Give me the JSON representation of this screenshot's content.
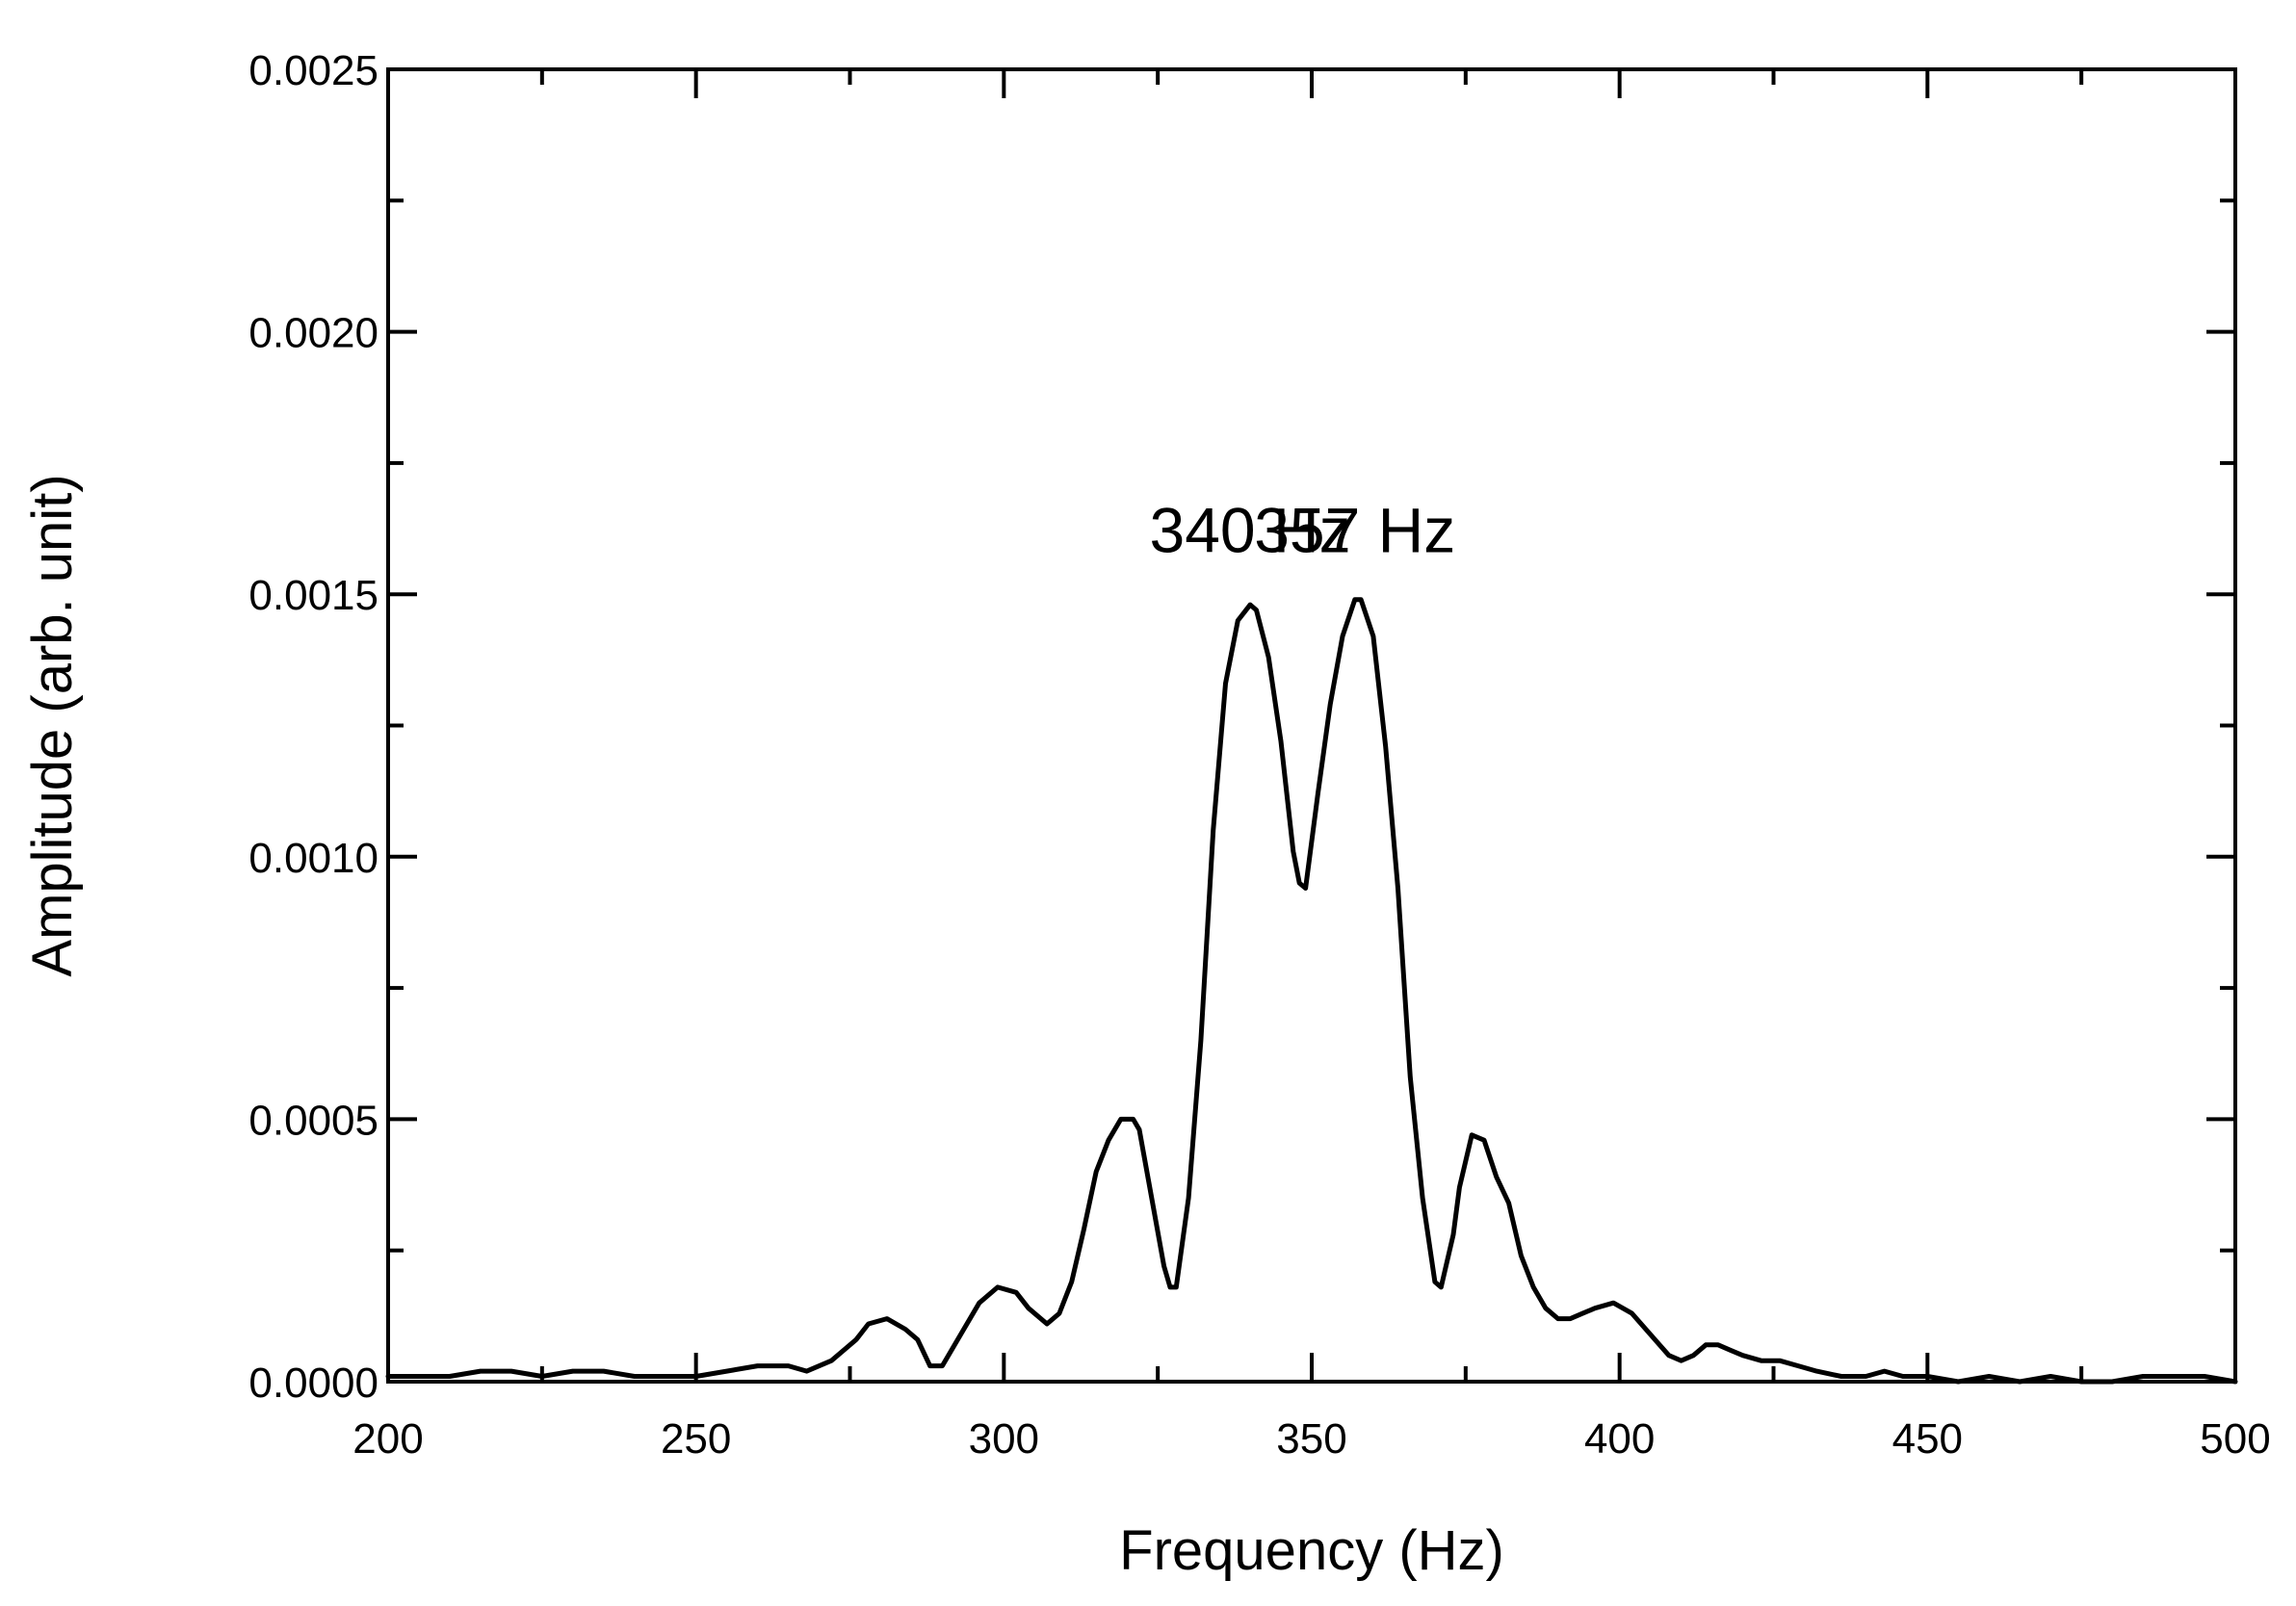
{
  "chart_data": {
    "type": "line",
    "title": "",
    "xlabel": "Frequency (Hz)",
    "ylabel": "Amplitude (arb. unit)",
    "xlim": [
      200,
      500
    ],
    "ylim": [
      0,
      0.0025
    ],
    "xticks": [
      200,
      250,
      300,
      350,
      400,
      450,
      500
    ],
    "xtick_labels": [
      "200",
      "250",
      "300",
      "350",
      "400",
      "450",
      "500"
    ],
    "yticks": [
      0,
      0.0005,
      0.001,
      0.0015,
      0.002,
      0.0025
    ],
    "ytick_labels": [
      "0.0000",
      "0.0005",
      "0.0010",
      "0.0015",
      "0.0020",
      "0.0025"
    ],
    "grid": false,
    "line_color": "#000000",
    "annotations": [
      {
        "text": "340 Hz",
        "x": 340,
        "y": 0.00158
      },
      {
        "text": "357 Hz",
        "x": 357,
        "y": 0.00158
      }
    ],
    "series": [
      {
        "x": [
          200,
          205,
          210,
          215,
          220,
          225,
          230,
          235,
          240,
          245,
          250,
          255,
          260,
          265,
          268,
          272,
          276,
          278,
          281,
          284,
          286,
          288,
          290,
          293,
          296,
          299,
          302,
          304,
          307,
          309,
          311,
          313,
          315,
          317,
          319,
          321,
          322,
          324,
          326,
          327,
          328,
          330,
          332,
          334,
          336,
          338,
          340,
          341,
          343,
          345,
          347,
          348,
          349,
          351,
          353,
          355,
          357,
          358,
          360,
          362,
          364,
          366,
          368,
          370,
          371,
          373,
          374,
          376,
          378,
          380,
          382,
          384,
          386,
          388,
          390,
          392,
          394,
          396,
          399,
          402,
          405,
          408,
          410,
          412,
          414,
          416,
          418,
          420,
          423,
          426,
          429,
          432,
          436,
          440,
          443,
          446,
          450,
          455,
          460,
          465,
          470,
          475,
          480,
          485,
          490,
          495,
          500
        ],
        "y": [
          1e-05,
          1e-05,
          1e-05,
          2e-05,
          2e-05,
          1e-05,
          2e-05,
          2e-05,
          1e-05,
          1e-05,
          1e-05,
          2e-05,
          3e-05,
          3e-05,
          2e-05,
          4e-05,
          8e-05,
          0.00011,
          0.00012,
          0.0001,
          8e-05,
          3e-05,
          3e-05,
          9e-05,
          0.00015,
          0.00018,
          0.00017,
          0.00014,
          0.00011,
          0.00013,
          0.00019,
          0.00029,
          0.0004,
          0.00046,
          0.0005,
          0.0005,
          0.00048,
          0.00035,
          0.00022,
          0.00018,
          0.00018,
          0.00035,
          0.00065,
          0.00105,
          0.00133,
          0.00145,
          0.00148,
          0.00147,
          0.00138,
          0.00122,
          0.00101,
          0.00095,
          0.00094,
          0.00112,
          0.00129,
          0.00142,
          0.00149,
          0.00149,
          0.00142,
          0.00121,
          0.00094,
          0.00058,
          0.00035,
          0.00019,
          0.00018,
          0.00028,
          0.00037,
          0.00047,
          0.00046,
          0.00039,
          0.00034,
          0.00024,
          0.00018,
          0.00014,
          0.00012,
          0.00012,
          0.00013,
          0.00014,
          0.00015,
          0.00013,
          9e-05,
          5e-05,
          4e-05,
          5e-05,
          7e-05,
          7e-05,
          6e-05,
          5e-05,
          4e-05,
          4e-05,
          3e-05,
          2e-05,
          1e-05,
          1e-05,
          2e-05,
          1e-05,
          1e-05,
          0.0,
          1e-05,
          0.0,
          1e-05,
          0.0,
          0.0,
          1e-05,
          1e-05,
          1e-05,
          0.0
        ]
      }
    ]
  }
}
